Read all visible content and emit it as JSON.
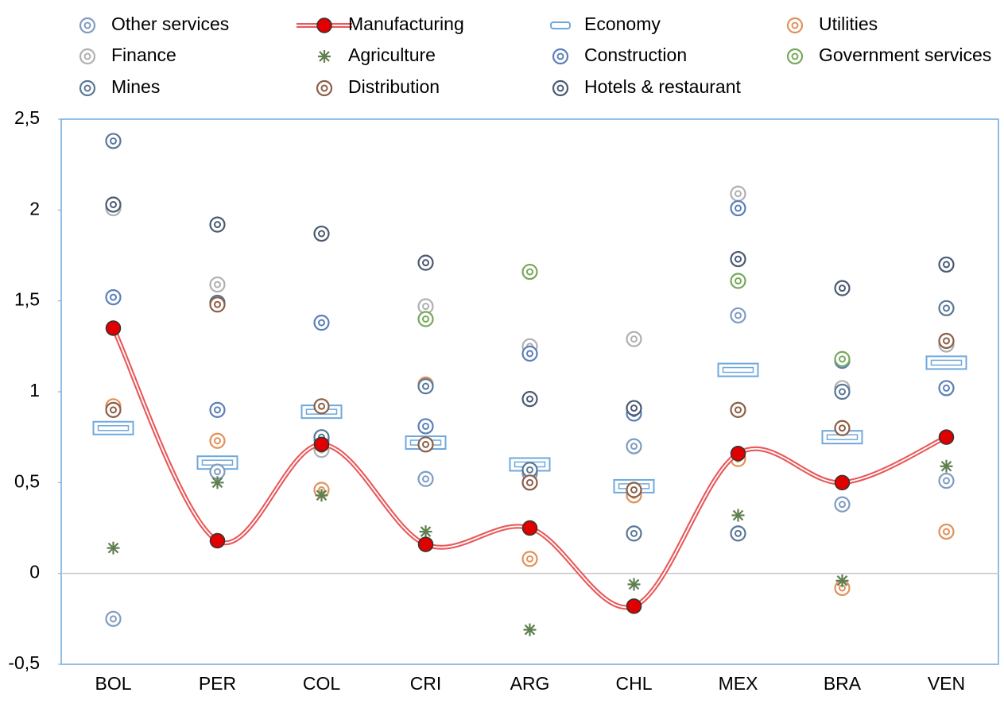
{
  "chart_data": {
    "type": "scatter",
    "categories": [
      "BOL",
      "PER",
      "COL",
      "CRI",
      "ARG",
      "CHL",
      "MEX",
      "BRA",
      "VEN"
    ],
    "ylim": [
      -0.5,
      2.5
    ],
    "yticks": [
      {
        "value": -0.5,
        "label": "-0,5"
      },
      0,
      {
        "value": 0.5,
        "label": "0,5"
      },
      1,
      {
        "value": 1.5,
        "label": "1,5"
      },
      2,
      {
        "value": 2.5,
        "label": "2,5"
      }
    ],
    "series": [
      {
        "name": "Other services",
        "color": "#7f9cc0",
        "marker": "ring",
        "values": [
          -0.25,
          0.56,
          0.73,
          0.52,
          0.55,
          0.7,
          1.42,
          0.38,
          0.51
        ]
      },
      {
        "name": "Manufacturing",
        "color": "#e8595b",
        "marker": "line",
        "values": [
          1.35,
          0.18,
          0.71,
          0.16,
          0.25,
          -0.18,
          0.66,
          0.5,
          0.75
        ]
      },
      {
        "name": "Economy",
        "color": "#6fa8dc",
        "marker": "bar",
        "values": [
          0.8,
          0.61,
          0.89,
          0.72,
          0.6,
          0.48,
          1.12,
          0.75,
          1.16
        ]
      },
      {
        "name": "Utilities",
        "color": "#e0915a",
        "marker": "ring",
        "values": [
          0.92,
          0.73,
          0.46,
          1.04,
          0.08,
          0.43,
          0.63,
          -0.08,
          0.23
        ]
      },
      {
        "name": "Finance",
        "color": "#b0b0b0",
        "marker": "ring",
        "values": [
          2.01,
          1.59,
          0.68,
          1.47,
          1.25,
          1.29,
          2.09,
          1.02,
          1.26
        ]
      },
      {
        "name": "Agriculture",
        "color": "#5f7f4f",
        "marker": "star",
        "values": [
          0.14,
          0.5,
          0.43,
          0.23,
          -0.31,
          -0.06,
          0.32,
          -0.04,
          0.59
        ]
      },
      {
        "name": "Construction",
        "color": "#5b7fb8",
        "marker": "ring",
        "values": [
          1.52,
          0.9,
          1.38,
          0.81,
          1.21,
          0.88,
          2.01,
          1.17,
          1.02
        ]
      },
      {
        "name": "Government services",
        "color": "#78a85a",
        "marker": "ring",
        "values": [
          null,
          null,
          null,
          1.4,
          1.66,
          null,
          1.61,
          1.18,
          null
        ]
      },
      {
        "name": "Mines",
        "color": "#587896",
        "marker": "ring",
        "values": [
          2.38,
          1.49,
          0.75,
          1.03,
          0.57,
          0.22,
          0.22,
          1.0,
          1.46
        ]
      },
      {
        "name": "Distribution",
        "color": "#8b5e45",
        "marker": "ring",
        "values": [
          0.9,
          1.48,
          0.92,
          0.71,
          0.5,
          0.46,
          0.9,
          0.8,
          1.28
        ]
      },
      {
        "name": "Hotels & restaurant",
        "color": "#4a5a72",
        "marker": "ring",
        "values": [
          2.03,
          1.92,
          1.87,
          1.71,
          0.96,
          0.91,
          1.73,
          1.57,
          1.7
        ]
      }
    ]
  }
}
